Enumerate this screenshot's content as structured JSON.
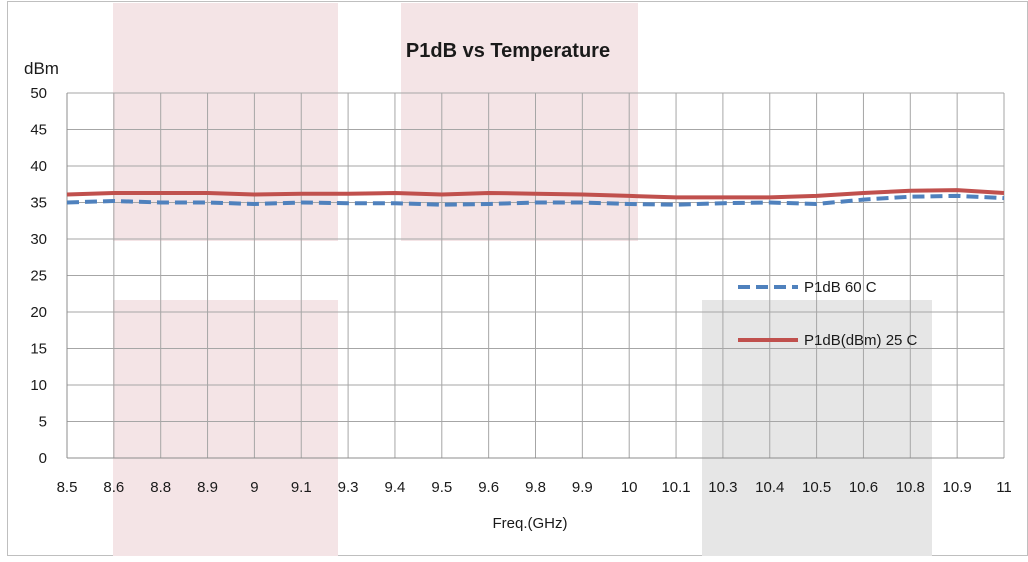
{
  "chart_data": {
    "type": "line",
    "title": "P1dB vs Temperature",
    "ylabel": "dBm",
    "xlabel": "Freq.(GHz)",
    "ylim": [
      0,
      50
    ],
    "yticks": [
      "0",
      "5",
      "10",
      "15",
      "20",
      "25",
      "30",
      "35",
      "40",
      "45",
      "50"
    ],
    "categories": [
      "8.5",
      "8.6",
      "8.8",
      "8.9",
      "9",
      "9.1",
      "9.3",
      "9.4",
      "9.5",
      "9.6",
      "9.8",
      "9.9",
      "10",
      "10.1",
      "10.3",
      "10.4",
      "10.5",
      "10.6",
      "10.8",
      "10.9",
      "11"
    ],
    "grid": true,
    "legend_position": "right",
    "series": [
      {
        "name": "P1dB  60 C",
        "style": "dashed",
        "color": "#4F81BD",
        "values": [
          35.0,
          35.2,
          35.0,
          35.0,
          34.8,
          35.0,
          34.9,
          34.9,
          34.7,
          34.8,
          35.0,
          35.0,
          34.8,
          34.7,
          34.9,
          35.0,
          34.8,
          35.4,
          35.8,
          35.9,
          35.6
        ]
      },
      {
        "name": "P1dB(dBm) 25 C",
        "style": "solid",
        "color": "#C0504D",
        "values": [
          36.1,
          36.3,
          36.3,
          36.3,
          36.1,
          36.2,
          36.2,
          36.3,
          36.1,
          36.3,
          36.2,
          36.1,
          35.9,
          35.7,
          35.7,
          35.7,
          35.9,
          36.3,
          36.6,
          36.7,
          36.3
        ]
      }
    ]
  }
}
